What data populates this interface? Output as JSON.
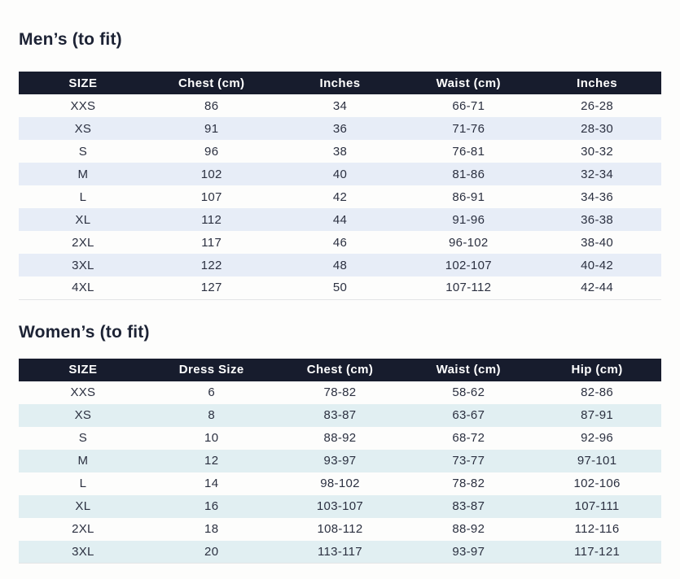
{
  "colors": {
    "header_bg": "#171c2d",
    "header_text": "#ffffff",
    "body_text": "#2b3040",
    "mens_stripe": "#e7edf7",
    "womens_stripe": "#e1eff2",
    "page_background": "#fdfdfc"
  },
  "mens": {
    "title": "Men’s (to fit)",
    "columns": [
      "SIZE",
      "Chest (cm)",
      "Inches",
      "Waist (cm)",
      "Inches"
    ],
    "rows": [
      [
        "XXS",
        "86",
        "34",
        "66-71",
        "26-28"
      ],
      [
        "XS",
        "91",
        "36",
        "71-76",
        "28-30"
      ],
      [
        "S",
        "96",
        "38",
        "76-81",
        "30-32"
      ],
      [
        "M",
        "102",
        "40",
        "81-86",
        "32-34"
      ],
      [
        "L",
        "107",
        "42",
        "86-91",
        "34-36"
      ],
      [
        "XL",
        "112",
        "44",
        "91-96",
        "36-38"
      ],
      [
        "2XL",
        "117",
        "46",
        "96-102",
        "38-40"
      ],
      [
        "3XL",
        "122",
        "48",
        "102-107",
        "40-42"
      ],
      [
        "4XL",
        "127",
        "50",
        "107-112",
        "42-44"
      ]
    ]
  },
  "womens": {
    "title": "Women’s (to fit)",
    "columns": [
      "SIZE",
      "Dress Size",
      "Chest (cm)",
      "Waist (cm)",
      "Hip (cm)"
    ],
    "rows": [
      [
        "XXS",
        "6",
        "78-82",
        "58-62",
        "82-86"
      ],
      [
        "XS",
        "8",
        "83-87",
        "63-67",
        "87-91"
      ],
      [
        "S",
        "10",
        "88-92",
        "68-72",
        "92-96"
      ],
      [
        "M",
        "12",
        "93-97",
        "73-77",
        "97-101"
      ],
      [
        "L",
        "14",
        "98-102",
        "78-82",
        "102-106"
      ],
      [
        "XL",
        "16",
        "103-107",
        "83-87",
        "107-111"
      ],
      [
        "2XL",
        "18",
        "108-112",
        "88-92",
        "112-116"
      ],
      [
        "3XL",
        "20",
        "113-117",
        "93-97",
        "117-121"
      ]
    ]
  }
}
